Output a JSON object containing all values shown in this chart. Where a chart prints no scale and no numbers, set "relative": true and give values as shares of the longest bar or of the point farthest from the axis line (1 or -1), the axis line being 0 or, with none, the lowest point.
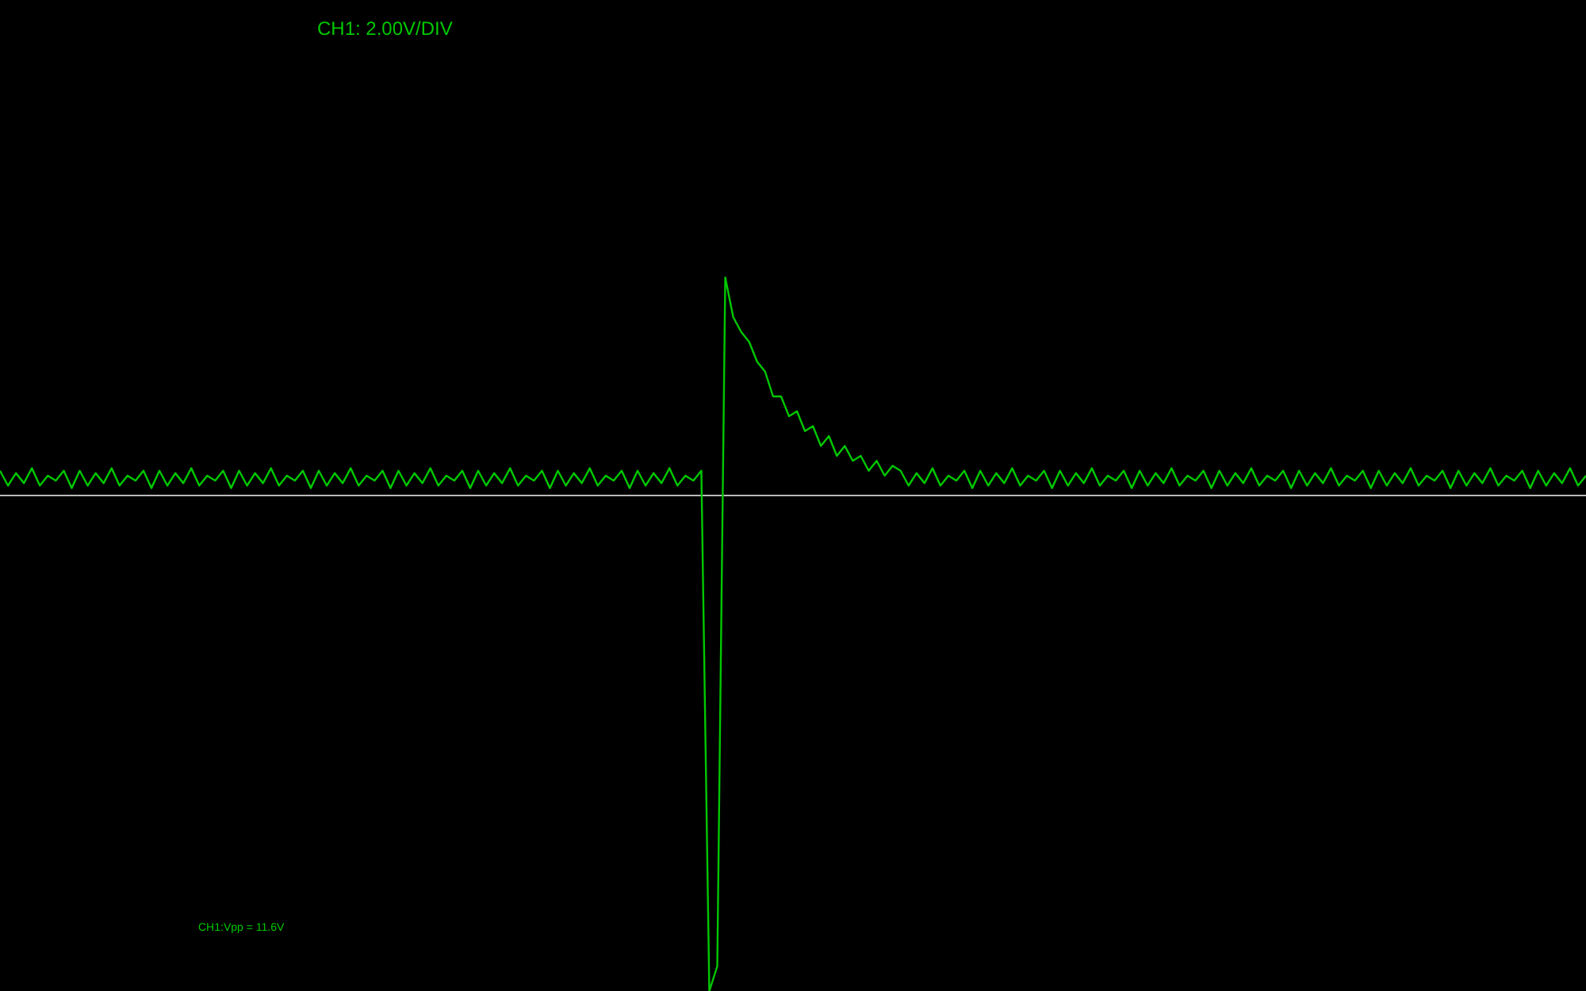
{
  "chart_data": {
    "type": "line",
    "relative": true,
    "legend": false,
    "grid": false,
    "marker": "none",
    "line_style": "solid",
    "annotations": [
      "CH1: 2.00V/DIV",
      "CH1:Vpp = 11.6V"
    ],
    "categories": [
      null,
      null,
      null,
      null,
      null,
      null,
      null,
      null,
      null,
      null,
      null,
      null,
      null,
      null,
      null,
      null,
      null,
      null,
      null,
      null,
      null,
      null,
      null,
      null,
      null,
      null,
      null,
      null,
      null,
      null,
      null,
      null,
      null,
      null,
      null,
      null,
      null,
      null,
      null,
      null,
      null,
      null,
      null,
      null,
      null,
      null,
      null,
      null,
      null,
      null,
      null,
      null,
      null,
      null,
      null,
      null,
      null,
      null,
      null,
      null,
      null,
      null,
      null,
      null,
      null,
      null,
      null,
      null,
      null,
      null,
      null,
      null,
      null,
      null,
      null,
      null,
      null,
      null,
      null,
      null,
      null,
      null,
      null,
      null,
      null,
      null,
      null,
      null,
      null,
      null,
      null,
      null,
      null,
      null,
      null,
      null,
      null,
      null,
      null,
      null,
      null,
      null,
      null,
      null,
      null,
      null,
      null,
      null,
      null,
      null,
      null,
      null,
      null,
      null,
      null,
      null,
      null,
      null,
      null,
      null,
      null,
      null,
      null,
      null,
      null,
      null,
      null,
      null,
      null,
      null,
      null,
      null,
      null,
      null,
      null,
      null,
      null,
      null,
      null,
      null,
      null,
      null,
      null,
      null,
      null,
      null,
      null,
      null,
      null,
      null,
      null,
      null,
      null,
      null,
      null,
      null,
      null,
      null,
      null,
      null,
      null,
      null,
      null,
      null,
      null,
      null,
      null,
      null,
      null,
      null,
      null,
      null,
      null,
      null,
      null,
      null,
      null,
      null,
      null,
      null,
      null,
      null,
      null,
      null,
      null,
      null,
      null,
      null,
      null,
      null,
      null,
      null,
      null,
      null,
      null,
      null,
      null,
      null,
      null,
      null
    ],
    "series": [
      {
        "color": "#00c800",
        "values": [
          0.05,
          0.02,
          0.045,
          0.025,
          0.055,
          0.02,
          0.04,
          0.03,
          0.05,
          0.015,
          0.05,
          0.02,
          0.045,
          0.025,
          0.055,
          0.02,
          0.04,
          0.03,
          0.05,
          0.015,
          0.05,
          0.02,
          0.045,
          0.025,
          0.055,
          0.02,
          0.04,
          0.03,
          0.05,
          0.015,
          0.05,
          0.02,
          0.045,
          0.025,
          0.055,
          0.02,
          0.04,
          0.03,
          0.05,
          0.015,
          0.05,
          0.02,
          0.045,
          0.025,
          0.055,
          0.02,
          0.04,
          0.03,
          0.05,
          0.015,
          0.05,
          0.02,
          0.045,
          0.025,
          0.055,
          0.02,
          0.04,
          0.03,
          0.05,
          0.015,
          0.05,
          0.02,
          0.045,
          0.025,
          0.055,
          0.02,
          0.04,
          0.03,
          0.05,
          0.015,
          0.05,
          0.02,
          0.045,
          0.025,
          0.055,
          0.02,
          0.04,
          0.03,
          0.05,
          0.015,
          0.05,
          0.02,
          0.045,
          0.025,
          0.055,
          0.02,
          0.04,
          0.03,
          0.05,
          -1,
          -0.95,
          0.44,
          0.36,
          0.33,
          0.31,
          0.27,
          0.25,
          0.2,
          0.2,
          0.16,
          0.17,
          0.13,
          0.14,
          0.1,
          0.12,
          0.08,
          0.1,
          0.07,
          0.08,
          0.05,
          0.07,
          0.04,
          0.06,
          0.05,
          0.02,
          0.045,
          0.025,
          0.055,
          0.02,
          0.04,
          0.03,
          0.05,
          0.015,
          0.05,
          0.02,
          0.045,
          0.025,
          0.055,
          0.02,
          0.04,
          0.03,
          0.05,
          0.015,
          0.05,
          0.02,
          0.045,
          0.025,
          0.055,
          0.02,
          0.04,
          0.03,
          0.05,
          0.015,
          0.05,
          0.02,
          0.045,
          0.025,
          0.055,
          0.02,
          0.04,
          0.03,
          0.05,
          0.015,
          0.05,
          0.02,
          0.045,
          0.025,
          0.055,
          0.02,
          0.04,
          0.03,
          0.05,
          0.015,
          0.05,
          0.02,
          0.045,
          0.025,
          0.055,
          0.02,
          0.04,
          0.03,
          0.05,
          0.015,
          0.05,
          0.02,
          0.045,
          0.025,
          0.055,
          0.02,
          0.04,
          0.03,
          0.05,
          0.015,
          0.05,
          0.02,
          0.045,
          0.025,
          0.055,
          0.02,
          0.04,
          0.03,
          0.05,
          0.015,
          0.05,
          0.02,
          0.045,
          0.025,
          0.055,
          0.02,
          0.04
        ]
      }
    ]
  }
}
